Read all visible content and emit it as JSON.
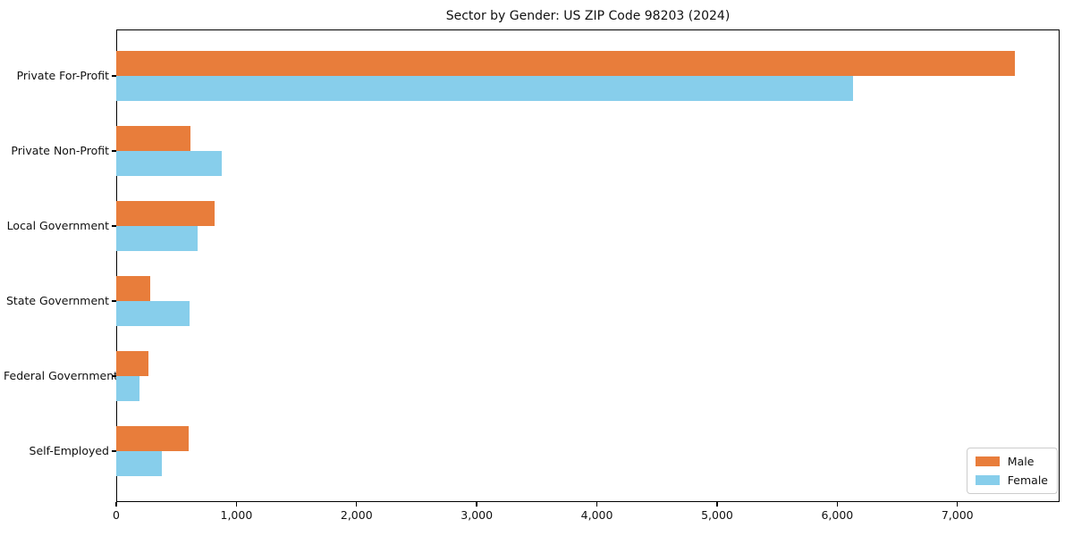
{
  "chart_data": {
    "type": "bar",
    "orientation": "horizontal",
    "title": "Sector by Gender: US ZIP Code 98203 (2024)",
    "categories": [
      "Private For-Profit",
      "Private Non-Profit",
      "Local Government",
      "State Government",
      "Federal Government",
      "Self-Employed"
    ],
    "series": [
      {
        "name": "Male",
        "color": "#e87d3b",
        "values": [
          7480,
          620,
          815,
          280,
          265,
          600
        ]
      },
      {
        "name": "Female",
        "color": "#87ceeb",
        "values": [
          6130,
          880,
          680,
          610,
          190,
          380
        ]
      }
    ],
    "xlabel": "",
    "ylabel": "",
    "xlim": [
      0,
      7850
    ],
    "xticks": [
      0,
      1000,
      2000,
      3000,
      4000,
      5000,
      6000,
      7000
    ],
    "xtick_labels": [
      "0",
      "1,000",
      "2,000",
      "3,000",
      "4,000",
      "5,000",
      "6,000",
      "7,000"
    ],
    "legend_position": "lower right",
    "grid": false
  }
}
